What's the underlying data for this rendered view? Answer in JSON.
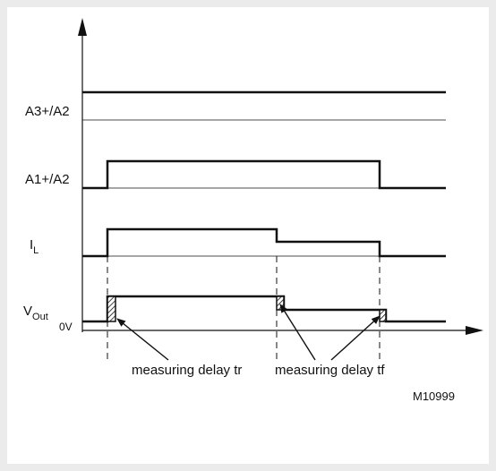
{
  "signals": {
    "a3": "A3+/A2",
    "a1": "A1+/A2",
    "il_main": "I",
    "il_sub": "L",
    "vout_main": "V",
    "vout_sub": "Out",
    "zero_volt": "0V"
  },
  "annotations": {
    "delay_rise": "measuring delay tr",
    "delay_fall": "measuring delay tf"
  },
  "figure_code": "M10999",
  "colors": {
    "line": "#111111",
    "background": "#ebebeb",
    "canvas": "#ffffff"
  }
}
